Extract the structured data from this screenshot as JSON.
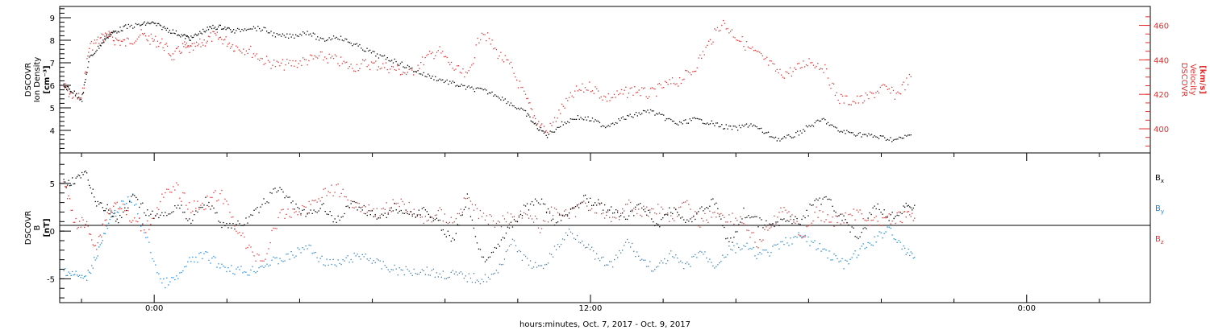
{
  "footer": {
    "xlabel": "hours:minutes, Oct.  7, 2017 - Oct.  9, 2017"
  },
  "colors": {
    "black": "#000000",
    "red": "#e03030",
    "blue": "#1a86d6"
  },
  "chart_data": [
    {
      "type": "scatter",
      "title": "",
      "ylabel_left": [
        "DSCOVR",
        "Ion Density",
        "[cm⁻³]"
      ],
      "ylabel_right": [
        "DSCOVR",
        "Velocity",
        "[km/s]"
      ],
      "x_ticks": [
        "0:00",
        "12:00",
        "0:00"
      ],
      "x_range_hours": [
        -2.6,
        27.4
      ],
      "left_axis": {
        "ylim": [
          3.0,
          9.5
        ],
        "ticks": [
          4,
          5,
          6,
          7,
          8,
          9
        ]
      },
      "right_axis": {
        "ylim": [
          386,
          471
        ],
        "ticks": [
          400,
          420,
          440,
          460
        ]
      },
      "series": [
        {
          "name": "density",
          "axis": "left",
          "color": "black",
          "x": [
            -2.5,
            -2.3,
            -2.0,
            -1.8,
            -1.5,
            -1.3,
            -1.1,
            -0.8,
            -0.4,
            -0.1,
            0.2,
            0.5,
            0.8,
            1.0,
            1.3,
            1.6,
            1.9,
            2.2,
            2.6,
            3.0,
            3.4,
            3.8,
            4.2,
            4.6,
            5.0,
            5.4,
            5.8,
            6.2,
            6.6,
            7.0,
            7.4,
            7.8,
            8.2,
            8.6,
            9.0,
            9.4,
            9.8,
            10.2,
            10.5,
            10.8,
            11.2,
            11.6,
            12.0,
            12.4,
            12.8,
            13.2,
            13.6,
            14.0,
            14.4,
            14.8,
            15.2,
            15.6,
            16.0,
            16.4,
            16.8,
            17.2,
            17.6,
            18.0,
            18.4,
            18.8,
            19.2,
            19.6,
            20.0,
            20.4,
            20.8
          ],
          "y": [
            6.0,
            5.8,
            5.4,
            7.2,
            7.8,
            8.2,
            8.4,
            8.6,
            8.7,
            8.8,
            8.6,
            8.4,
            8.2,
            8.1,
            8.4,
            8.6,
            8.6,
            8.4,
            8.6,
            8.5,
            8.2,
            8.2,
            8.4,
            8.0,
            8.2,
            7.9,
            7.6,
            7.3,
            7.1,
            6.8,
            6.5,
            6.3,
            6.1,
            5.9,
            5.8,
            5.6,
            5.2,
            4.8,
            4.2,
            3.8,
            4.3,
            4.6,
            4.5,
            4.2,
            4.5,
            4.7,
            4.9,
            4.6,
            4.3,
            4.5,
            4.4,
            4.2,
            4.1,
            4.3,
            3.9,
            3.6,
            3.8,
            4.2,
            4.5,
            4.0,
            3.9,
            3.8,
            3.7,
            3.6,
            3.8
          ]
        },
        {
          "name": "velocity",
          "axis": "right",
          "color": "red",
          "x": [
            -2.5,
            -2.3,
            -2.0,
            -1.8,
            -1.5,
            -1.3,
            -1.1,
            -0.8,
            -0.4,
            -0.1,
            0.2,
            0.5,
            0.8,
            1.0,
            1.3,
            1.6,
            1.9,
            2.2,
            2.6,
            3.0,
            3.4,
            3.8,
            4.2,
            4.6,
            5.0,
            5.4,
            5.8,
            6.2,
            6.6,
            7.0,
            7.4,
            7.8,
            8.2,
            8.6,
            9.0,
            9.4,
            9.8,
            10.2,
            10.5,
            10.8,
            11.2,
            11.6,
            12.0,
            12.4,
            12.8,
            13.2,
            13.6,
            14.0,
            14.4,
            14.8,
            15.2,
            15.6,
            16.0,
            16.4,
            16.8,
            17.2,
            17.6,
            18.0,
            18.4,
            18.8,
            19.2,
            19.6,
            20.0,
            20.4,
            20.8
          ],
          "y": [
            425,
            420,
            418,
            448,
            452,
            455,
            452,
            450,
            455,
            452,
            450,
            442,
            448,
            446,
            450,
            454,
            452,
            448,
            446,
            440,
            437,
            438,
            440,
            442,
            440,
            436,
            438,
            437,
            435,
            432,
            440,
            446,
            436,
            430,
            458,
            445,
            436,
            418,
            405,
            398,
            412,
            422,
            425,
            418,
            420,
            423,
            420,
            425,
            428,
            434,
            448,
            462,
            454,
            446,
            440,
            432,
            434,
            440,
            436,
            418,
            416,
            418,
            424,
            420,
            430
          ]
        }
      ]
    },
    {
      "type": "scatter",
      "title": "",
      "ylabel_left": [
        "DSCOVR",
        "B",
        "[nT]"
      ],
      "x_ticks": [
        "0:00",
        "12:00",
        "0:00"
      ],
      "x_range_hours": [
        -2.6,
        27.4
      ],
      "ylim": [
        -7.5,
        8.2
      ],
      "ticks": [
        -5,
        0,
        5
      ],
      "zero_line": true,
      "legend": [
        {
          "label": "Bx",
          "color": "black"
        },
        {
          "label": "By",
          "color": "blue"
        },
        {
          "label": "Bz",
          "color": "red"
        }
      ],
      "series": [
        {
          "name": "Bx",
          "color": "black",
          "x": [
            -2.5,
            -2.2,
            -1.9,
            -1.6,
            -1.3,
            -1.0,
            -0.6,
            -0.2,
            0.2,
            0.6,
            1.0,
            1.4,
            1.8,
            2.2,
            2.6,
            3.0,
            3.4,
            3.8,
            4.2,
            4.6,
            5.0,
            5.4,
            5.8,
            6.2,
            6.6,
            7.0,
            7.4,
            7.8,
            8.2,
            8.6,
            9.0,
            9.4,
            9.8,
            10.2,
            10.6,
            11.0,
            11.4,
            11.8,
            12.2,
            12.6,
            13.0,
            13.4,
            13.8,
            14.2,
            14.6,
            15.0,
            15.4,
            15.8,
            16.2,
            16.6,
            17.0,
            17.4,
            17.8,
            18.2,
            18.6,
            19.0,
            19.4,
            19.8,
            20.2,
            20.6,
            20.9
          ],
          "y": [
            5.0,
            5.5,
            6.0,
            3.0,
            2.5,
            1.0,
            3.5,
            2.0,
            1.5,
            2.8,
            1.2,
            3.4,
            1.0,
            0.5,
            1.2,
            3.0,
            4.5,
            3.0,
            1.5,
            2.8,
            1.0,
            3.0,
            2.2,
            1.5,
            2.5,
            1.8,
            2.2,
            1.0,
            -1.0,
            3.5,
            -3.0,
            -1.5,
            0.5,
            2.5,
            3.2,
            1.0,
            2.0,
            3.5,
            3.0,
            2.0,
            1.5,
            2.8,
            0.5,
            2.5,
            1.0,
            2.0,
            3.2,
            -1.5,
            2.0,
            1.0,
            0.5,
            1.5,
            1.0,
            3.5,
            3.0,
            1.0,
            -1.0,
            3.0,
            1.5,
            2.5,
            2.8
          ]
        },
        {
          "name": "By",
          "color": "blue",
          "x": [
            -2.5,
            -2.2,
            -1.9,
            -1.6,
            -1.3,
            -1.0,
            -0.6,
            -0.2,
            0.2,
            0.6,
            1.0,
            1.4,
            1.8,
            2.2,
            2.6,
            3.0,
            3.4,
            3.8,
            4.2,
            4.6,
            5.0,
            5.4,
            5.8,
            6.2,
            6.6,
            7.0,
            7.4,
            7.8,
            8.2,
            8.6,
            9.0,
            9.4,
            9.8,
            10.2,
            10.6,
            11.0,
            11.4,
            11.8,
            12.2,
            12.6,
            13.0,
            13.4,
            13.8,
            14.2,
            14.6,
            15.0,
            15.4,
            15.8,
            16.2,
            16.6,
            17.0,
            17.4,
            17.8,
            18.2,
            18.6,
            19.0,
            19.4,
            19.8,
            20.2,
            20.6,
            20.9
          ],
          "y": [
            -4.0,
            -4.5,
            -5.0,
            -2.5,
            0.5,
            2.5,
            3.5,
            -1.0,
            -5.5,
            -5.0,
            -3.0,
            -2.5,
            -3.5,
            -4.0,
            -4.2,
            -3.5,
            -3.0,
            -2.5,
            -1.5,
            -3.0,
            -3.5,
            -2.8,
            -2.5,
            -3.5,
            -4.0,
            -4.2,
            -4.0,
            -4.5,
            -4.5,
            -4.8,
            -5.0,
            -4.5,
            -1.0,
            -3.0,
            -4.0,
            -2.0,
            0.0,
            -1.0,
            -3.0,
            -3.5,
            -1.0,
            -3.0,
            -4.0,
            -2.5,
            -3.8,
            -2.0,
            -3.5,
            -2.0,
            -1.5,
            -2.5,
            -2.0,
            -1.0,
            -0.5,
            -1.5,
            -2.5,
            -3.5,
            -2.0,
            -1.0,
            0.5,
            -2.0,
            -2.5
          ]
        },
        {
          "name": "Bz",
          "color": "red",
          "x": [
            -2.5,
            -2.2,
            -1.9,
            -1.6,
            -1.3,
            -1.0,
            -0.6,
            -0.2,
            0.2,
            0.6,
            1.0,
            1.4,
            1.8,
            2.2,
            2.6,
            3.0,
            3.4,
            3.8,
            4.2,
            4.6,
            5.0,
            5.4,
            5.8,
            6.2,
            6.6,
            7.0,
            7.4,
            7.8,
            8.2,
            8.6,
            9.0,
            9.4,
            9.8,
            10.2,
            10.6,
            11.0,
            11.4,
            11.8,
            12.2,
            12.6,
            13.0,
            13.4,
            13.8,
            14.2,
            14.6,
            15.0,
            15.4,
            15.8,
            16.2,
            16.6,
            17.0,
            17.4,
            17.8,
            18.2,
            18.6,
            19.0,
            19.4,
            19.8,
            20.2,
            20.6,
            20.9
          ],
          "y": [
            5.2,
            1.0,
            0.8,
            -1.5,
            2.0,
            3.0,
            1.0,
            0.5,
            3.5,
            4.5,
            2.5,
            3.0,
            4.0,
            1.0,
            -2.0,
            -3.0,
            1.5,
            2.0,
            2.5,
            4.0,
            4.5,
            3.0,
            2.5,
            2.0,
            3.0,
            2.5,
            1.0,
            2.0,
            1.0,
            3.5,
            1.5,
            1.0,
            1.5,
            2.0,
            0.5,
            2.5,
            1.5,
            3.0,
            2.5,
            1.0,
            3.0,
            2.0,
            2.5,
            1.5,
            2.8,
            1.0,
            2.0,
            1.5,
            1.0,
            -1.5,
            1.0,
            2.5,
            -0.5,
            2.0,
            1.0,
            1.5,
            2.0,
            1.0,
            1.2,
            1.5,
            1.6
          ]
        }
      ]
    }
  ]
}
